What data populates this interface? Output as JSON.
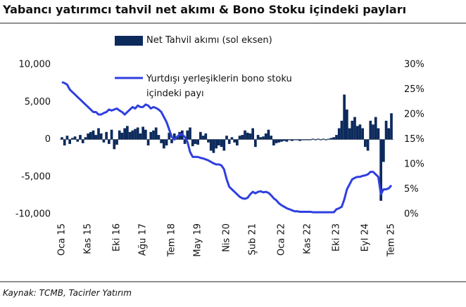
{
  "chart_data": {
    "type": "bar_line",
    "title": "Yabancı yatırımcı tahvil net akımı & Bono Stoku içindeki payları",
    "source": "Kaynak: TCMB, Tacirler Yatırım",
    "categories": [
      "Oca 15",
      null,
      null,
      null,
      null,
      null,
      null,
      null,
      null,
      null,
      "Kas 15",
      null,
      null,
      null,
      null,
      null,
      null,
      null,
      null,
      null,
      null,
      "Eki 16",
      null,
      null,
      null,
      null,
      null,
      null,
      null,
      null,
      null,
      "Ağu 17",
      null,
      null,
      null,
      null,
      null,
      null,
      null,
      null,
      null,
      null,
      "Tem 18",
      null,
      null,
      null,
      null,
      null,
      null,
      null,
      null,
      null,
      "May 19",
      null,
      null,
      null,
      null,
      null,
      null,
      null,
      null,
      null,
      null,
      "Nis 20",
      null,
      null,
      null,
      null,
      null,
      null,
      null,
      null,
      null,
      "Şub 21",
      null,
      null,
      null,
      null,
      null,
      null,
      null,
      null,
      null,
      null,
      "Oca 22",
      null,
      null,
      null,
      null,
      null,
      null,
      null,
      null,
      null,
      "Kas 22",
      null,
      null,
      null,
      null,
      null,
      null,
      null,
      null,
      null,
      null,
      "Eki 23",
      null,
      null,
      null,
      null,
      null,
      null,
      null,
      null,
      null,
      null,
      "Eyl 24",
      null,
      null,
      null,
      null,
      null,
      null,
      null,
      null,
      null,
      "Tem 25"
    ],
    "series": [
      {
        "name": "Net Tahvil akımı (sol eksen)",
        "type": "bar",
        "color": "#0d2a5c",
        "values": [
          300,
          -800,
          500,
          -600,
          200,
          400,
          -300,
          600,
          -500,
          300,
          800,
          1000,
          1200,
          600,
          1500,
          800,
          -400,
          1000,
          -600,
          1300,
          -1300,
          -700,
          1200,
          900,
          1500,
          1800,
          1000,
          1200,
          1400,
          1600,
          800,
          1700,
          1300,
          -800,
          1000,
          1200,
          1600,
          600,
          -500,
          -1200,
          -800,
          900,
          -500,
          800,
          400,
          1000,
          1200,
          -600,
          1200,
          1600,
          -900,
          -600,
          -700,
          1000,
          500,
          800,
          -400,
          -1500,
          -1800,
          -1200,
          -800,
          -1000,
          -1500,
          500,
          -600,
          300,
          -400,
          -800,
          500,
          600,
          1200,
          900,
          800,
          1500,
          -1000,
          600,
          300,
          400,
          800,
          1300,
          500,
          -800,
          -500,
          -400,
          -300,
          -200,
          -300,
          -100,
          -200,
          -100,
          -100,
          -200,
          -100,
          -100,
          -100,
          -100,
          100,
          -100,
          100,
          -100,
          100,
          -100,
          100,
          200,
          300,
          600,
          1500,
          2500,
          6000,
          4000,
          1500,
          2500,
          3000,
          1800,
          2000,
          1500,
          -1000,
          -1500,
          2500,
          2000,
          3000,
          1500,
          -8200,
          -3000,
          2500,
          1500,
          3500
        ]
      },
      {
        "name": "Yurtdışı yerleşiklerin bono stoku içindeki payı",
        "type": "line",
        "axis": "y2",
        "color": "#2e3fe0",
        "values": [
          26.5,
          26.3,
          26,
          25,
          24.5,
          24,
          23.5,
          23,
          22.5,
          22,
          21.5,
          21,
          20.5,
          20.5,
          20,
          20,
          20.3,
          20.5,
          21,
          20.8,
          21,
          21.2,
          20.8,
          20.5,
          20,
          20.5,
          21,
          21.5,
          21.2,
          21.8,
          21.5,
          21.5,
          22,
          21.8,
          21.2,
          21.5,
          21.3,
          21,
          20.5,
          19.5,
          18.5,
          17,
          15.5,
          15,
          15.5,
          16,
          16,
          15.5,
          14.5,
          12.5,
          11.5,
          11.5,
          11.5,
          11.3,
          11.2,
          11,
          10.8,
          10.5,
          10.2,
          10,
          10,
          9.8,
          9,
          7,
          5.5,
          5,
          4.5,
          4,
          3.5,
          3.2,
          3.1,
          3.3,
          4,
          4.5,
          4.2,
          4.5,
          4.6,
          4.4,
          4.5,
          4.3,
          3.8,
          3.2,
          2.8,
          2.2,
          1.8,
          1.5,
          1.2,
          1,
          0.8,
          0.6,
          0.6,
          0.5,
          0.5,
          0.5,
          0.5,
          0.5,
          0.4,
          0.4,
          0.4,
          0.4,
          0.4,
          0.4,
          0.4,
          0.4,
          0.4,
          1,
          1.2,
          1.5,
          3,
          5,
          6,
          7,
          7.3,
          7.5,
          7.5,
          7.7,
          7.8,
          8,
          8.5,
          8.5,
          8,
          7.5,
          4,
          5,
          5,
          5.2,
          5.8
        ]
      }
    ],
    "ylim": [
      -10000,
      10000
    ],
    "yticks": [
      {
        "value": -10000,
        "label": "-10,000"
      },
      {
        "value": -5000,
        "label": "-5,000"
      },
      0,
      {
        "value": 5000,
        "label": "5,000"
      },
      {
        "value": 10000,
        "label": "10,000"
      }
    ],
    "y2lim": [
      0,
      30
    ],
    "y2ticks": [
      {
        "value": 0,
        "label": "0%"
      },
      {
        "value": 5,
        "label": "5%"
      },
      {
        "value": 10,
        "label": "10%"
      },
      {
        "value": 15,
        "label": "15%"
      },
      {
        "value": 20,
        "label": "20%"
      },
      {
        "value": 25,
        "label": "25%"
      },
      {
        "value": 30,
        "label": "30%"
      }
    ]
  }
}
